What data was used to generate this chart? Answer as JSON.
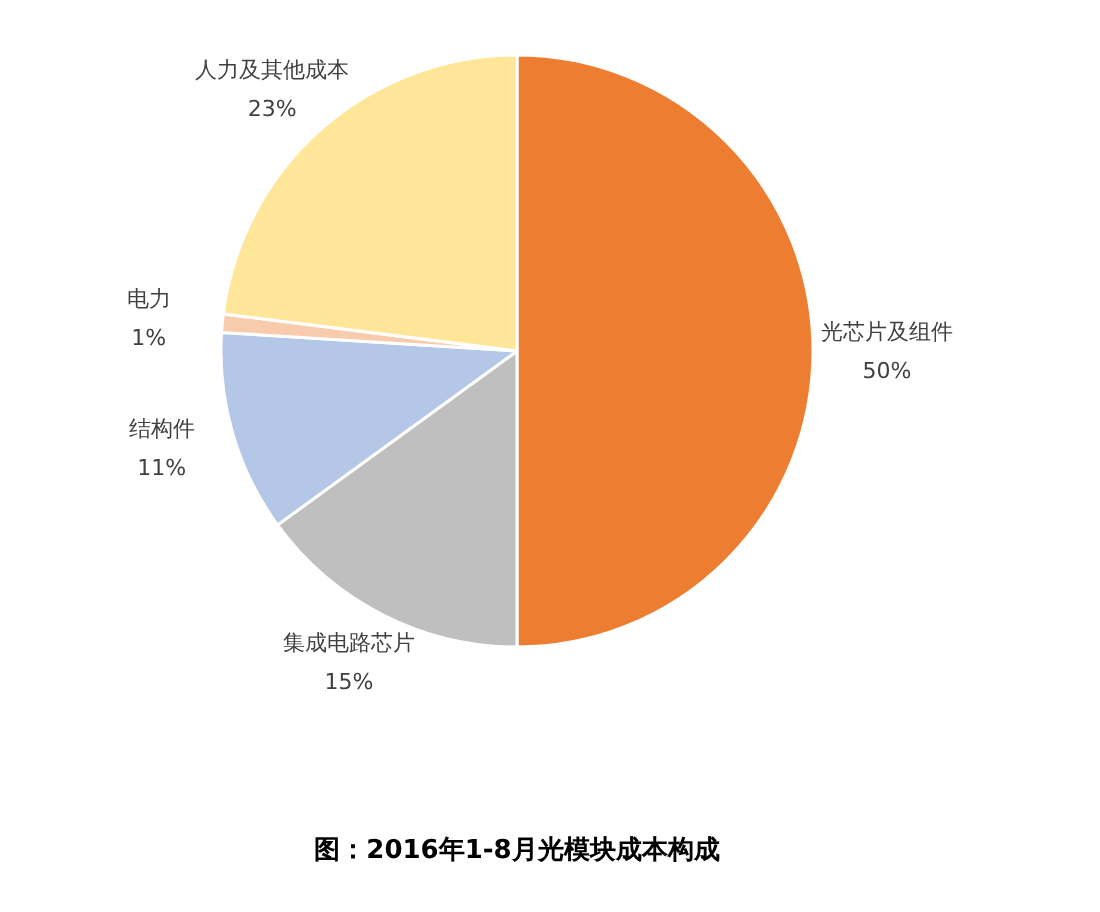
{
  "chart_data": {
    "type": "pie",
    "title": "图：2016年1-8月光模块成本构成",
    "categories": [
      "光芯片及组件",
      "集成电路芯片",
      "结构件",
      "电力",
      "人力及其他成本"
    ],
    "values": [
      50,
      15,
      11,
      1,
      23
    ],
    "colors": [
      "#ed7d31",
      "#bfbfbf",
      "#b4c7e7",
      "#f8cbad",
      "#ffe699"
    ],
    "value_labels": [
      "50%",
      "15%",
      "11%",
      "1%",
      "23%"
    ]
  }
}
